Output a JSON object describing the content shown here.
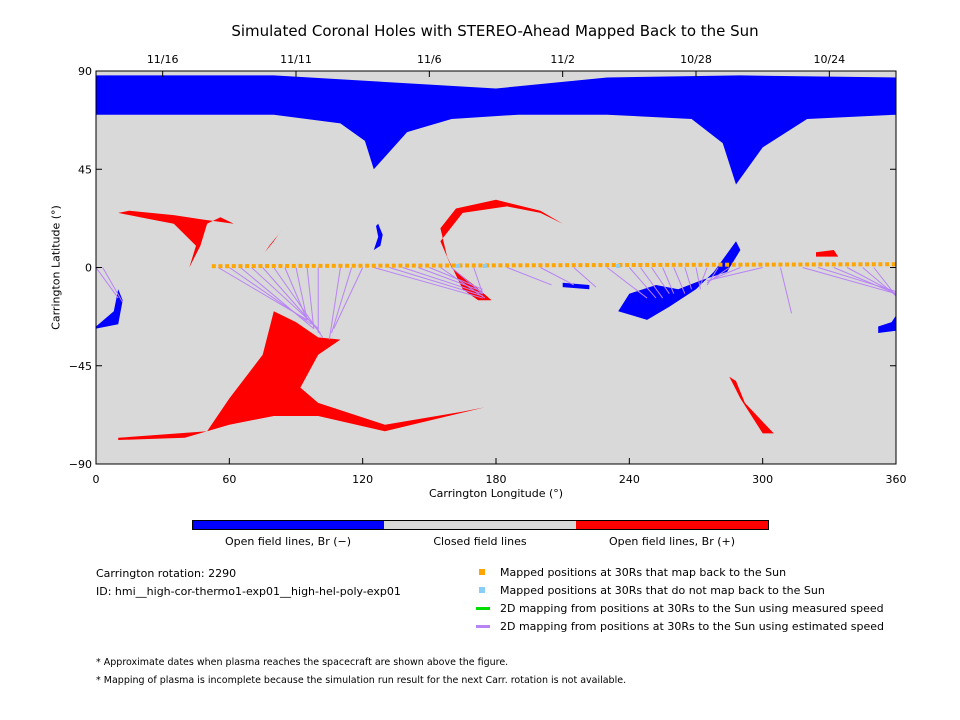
{
  "chart_data": {
    "type": "map",
    "title": "Simulated Coronal Holes with STEREO-Ahead Mapped Back to the Sun",
    "xlabel": "Carrington Longitude (°)",
    "ylabel": "Carrington Latitude (°)",
    "xlim": [
      0,
      360
    ],
    "ylim": [
      -90,
      90
    ],
    "x_ticks": [
      0,
      60,
      120,
      180,
      240,
      300,
      360
    ],
    "y_ticks": [
      {
        "value": 90,
        "label": "90"
      },
      {
        "value": 45,
        "label": "45"
      },
      {
        "value": 0,
        "label": "0"
      },
      {
        "value": -45,
        "label": "−45"
      },
      {
        "value": -90,
        "label": "−90"
      }
    ],
    "top_axis_dates": [
      {
        "label": "11/16",
        "lon": 30
      },
      {
        "label": "11/11",
        "lon": 90
      },
      {
        "label": "11/6",
        "lon": 150
      },
      {
        "label": "11/2",
        "lon": 210
      },
      {
        "label": "10/28",
        "lon": 270
      },
      {
        "label": "10/24",
        "lon": 330
      }
    ],
    "colors": {
      "negative": "#0000ff",
      "closed": "#d9d9d9",
      "positive": "#ff0000",
      "mapped": "#ffa500",
      "unmapped": "#87cefa",
      "measured": "#00dd00",
      "estimated": "#b883f5"
    },
    "regions": [
      {
        "polarity": "negative",
        "points": [
          [
            0,
            88
          ],
          [
            80,
            88
          ],
          [
            180,
            82
          ],
          [
            230,
            87
          ],
          [
            290,
            88
          ],
          [
            360,
            87
          ],
          [
            360,
            70
          ],
          [
            320,
            68
          ],
          [
            300,
            55
          ],
          [
            288,
            38
          ],
          [
            282,
            57
          ],
          [
            268,
            68
          ],
          [
            230,
            70
          ],
          [
            190,
            70
          ],
          [
            160,
            68
          ],
          [
            140,
            62
          ],
          [
            125,
            45
          ],
          [
            121,
            58
          ],
          [
            110,
            66
          ],
          [
            80,
            70
          ],
          [
            0,
            70
          ]
        ]
      },
      {
        "polarity": "negative",
        "points": [
          [
            127,
            20
          ],
          [
            129,
            15
          ],
          [
            128,
            10
          ],
          [
            125,
            8
          ],
          [
            127,
            14
          ],
          [
            126,
            19
          ]
        ]
      },
      {
        "polarity": "negative",
        "points": [
          [
            235,
            -20
          ],
          [
            248,
            -24
          ],
          [
            258,
            -18
          ],
          [
            270,
            -10
          ],
          [
            278,
            -2
          ],
          [
            288,
            12
          ],
          [
            290,
            8
          ],
          [
            284,
            -2
          ],
          [
            272,
            -6
          ],
          [
            262,
            -10
          ],
          [
            252,
            -8
          ],
          [
            240,
            -12
          ]
        ]
      },
      {
        "polarity": "negative",
        "points": [
          [
            210,
            -7
          ],
          [
            222,
            -8
          ],
          [
            222,
            -10
          ],
          [
            210,
            -9
          ]
        ]
      },
      {
        "polarity": "negative",
        "points": [
          [
            0,
            -27
          ],
          [
            8,
            -20
          ],
          [
            10,
            -10
          ],
          [
            12,
            -15
          ],
          [
            10,
            -26
          ],
          [
            0,
            -28
          ]
        ]
      },
      {
        "polarity": "negative",
        "points": [
          [
            352,
            -27
          ],
          [
            358,
            -25
          ],
          [
            360,
            -22
          ],
          [
            360,
            -29
          ],
          [
            352,
            -30
          ]
        ]
      },
      {
        "polarity": "positive",
        "points": [
          [
            10,
            -78
          ],
          [
            50,
            -75
          ],
          [
            60,
            -60
          ],
          [
            75,
            -40
          ],
          [
            80,
            -20
          ],
          [
            90,
            -25
          ],
          [
            100,
            -32
          ],
          [
            110,
            -33
          ],
          [
            100,
            -40
          ],
          [
            92,
            -55
          ],
          [
            100,
            -62
          ],
          [
            130,
            -72
          ],
          [
            165,
            -66
          ],
          [
            175,
            -64
          ],
          [
            130,
            -75
          ],
          [
            100,
            -68
          ],
          [
            80,
            -68
          ],
          [
            60,
            -72
          ],
          [
            40,
            -78
          ],
          [
            10,
            -79
          ]
        ]
      },
      {
        "polarity": "positive",
        "points": [
          [
            10,
            25
          ],
          [
            25,
            22
          ],
          [
            35,
            20
          ],
          [
            45,
            10
          ],
          [
            42,
            0
          ],
          [
            47,
            10
          ],
          [
            50,
            20
          ],
          [
            56,
            23
          ],
          [
            62,
            20
          ],
          [
            48,
            22
          ],
          [
            35,
            24
          ],
          [
            15,
            26
          ]
        ]
      },
      {
        "polarity": "positive",
        "points": [
          [
            78,
            10
          ],
          [
            82,
            15
          ],
          [
            84,
            18
          ],
          [
            80,
            12
          ],
          [
            76,
            7
          ]
        ]
      },
      {
        "polarity": "positive",
        "points": [
          [
            155,
            12
          ],
          [
            165,
            25
          ],
          [
            185,
            28
          ],
          [
            200,
            25
          ],
          [
            210,
            20
          ],
          [
            200,
            26
          ],
          [
            180,
            31
          ],
          [
            162,
            27
          ],
          [
            155,
            18
          ],
          [
            158,
            5
          ],
          [
            165,
            -10
          ],
          [
            172,
            -15
          ],
          [
            178,
            -15
          ],
          [
            170,
            -8
          ],
          [
            160,
            0
          ]
        ]
      },
      {
        "polarity": "positive",
        "points": [
          [
            324,
            7
          ],
          [
            332,
            8
          ],
          [
            334,
            5
          ],
          [
            324,
            5
          ]
        ]
      },
      {
        "polarity": "positive",
        "points": [
          [
            285,
            -50
          ],
          [
            290,
            -60
          ],
          [
            300,
            -76
          ],
          [
            305,
            -76
          ],
          [
            292,
            -62
          ],
          [
            288,
            -52
          ]
        ]
      }
    ],
    "estimated_speed_mappings": [
      {
        "from": [
          55,
          0
        ],
        "to": [
          95,
          -24
        ]
      },
      {
        "from": [
          60,
          0
        ],
        "to": [
          97,
          -26
        ]
      },
      {
        "from": [
          65,
          0
        ],
        "to": [
          98,
          -28
        ]
      },
      {
        "from": [
          70,
          0
        ],
        "to": [
          100,
          -28
        ]
      },
      {
        "from": [
          75,
          0
        ],
        "to": [
          101,
          -30
        ]
      },
      {
        "from": [
          80,
          0
        ],
        "to": [
          102,
          -32
        ]
      },
      {
        "from": [
          85,
          0
        ],
        "to": [
          95,
          -24
        ]
      },
      {
        "from": [
          90,
          0
        ],
        "to": [
          95,
          -24
        ]
      },
      {
        "from": [
          95,
          0
        ],
        "to": [
          98,
          -28
        ]
      },
      {
        "from": [
          100,
          0
        ],
        "to": [
          100,
          -30
        ]
      },
      {
        "from": [
          110,
          0
        ],
        "to": [
          105,
          -33
        ]
      },
      {
        "from": [
          115,
          0
        ],
        "to": [
          106,
          -30
        ]
      },
      {
        "from": [
          120,
          0
        ],
        "to": [
          107,
          -28
        ]
      },
      {
        "from": [
          125,
          0
        ],
        "to": [
          174,
          -14
        ]
      },
      {
        "from": [
          132,
          0
        ],
        "to": [
          174,
          -13
        ]
      },
      {
        "from": [
          138,
          0
        ],
        "to": [
          174,
          -12
        ]
      },
      {
        "from": [
          145,
          0
        ],
        "to": [
          174,
          -11
        ]
      },
      {
        "from": [
          150,
          0
        ],
        "to": [
          174,
          -10
        ]
      },
      {
        "from": [
          155,
          0
        ],
        "to": [
          175,
          -14
        ]
      },
      {
        "from": [
          160,
          0
        ],
        "to": [
          174,
          -12
        ]
      },
      {
        "from": [
          170,
          0
        ],
        "to": [
          174,
          -12
        ]
      },
      {
        "from": [
          185,
          0
        ],
        "to": [
          205,
          -8
        ]
      },
      {
        "from": [
          200,
          0
        ],
        "to": [
          215,
          -8
        ]
      },
      {
        "from": [
          215,
          0
        ],
        "to": [
          225,
          -9
        ]
      },
      {
        "from": [
          230,
          0
        ],
        "to": [
          248,
          -14
        ]
      },
      {
        "from": [
          240,
          0
        ],
        "to": [
          252,
          -14
        ]
      },
      {
        "from": [
          245,
          0
        ],
        "to": [
          255,
          -14
        ]
      },
      {
        "from": [
          250,
          0
        ],
        "to": [
          258,
          -12
        ]
      },
      {
        "from": [
          255,
          0
        ],
        "to": [
          260,
          -12
        ]
      },
      {
        "from": [
          260,
          0
        ],
        "to": [
          265,
          -12
        ]
      },
      {
        "from": [
          265,
          0
        ],
        "to": [
          268,
          -10
        ]
      },
      {
        "from": [
          270,
          0
        ],
        "to": [
          272,
          -10
        ]
      },
      {
        "from": [
          275,
          0
        ],
        "to": [
          272,
          -8
        ]
      },
      {
        "from": [
          280,
          0
        ],
        "to": [
          275,
          -8
        ]
      },
      {
        "from": [
          285,
          0
        ],
        "to": [
          275,
          -7
        ]
      },
      {
        "from": [
          290,
          0
        ],
        "to": [
          278,
          -5
        ]
      },
      {
        "from": [
          300,
          0
        ],
        "to": [
          275,
          -6
        ]
      },
      {
        "from": [
          308,
          0
        ],
        "to": [
          313,
          -21
        ]
      },
      {
        "from": [
          318,
          0
        ],
        "to": [
          360,
          -12
        ]
      },
      {
        "from": [
          325,
          0
        ],
        "to": [
          360,
          -11
        ]
      },
      {
        "from": [
          332,
          0
        ],
        "to": [
          360,
          -12
        ]
      },
      {
        "from": [
          338,
          0
        ],
        "to": [
          360,
          -12
        ]
      },
      {
        "from": [
          345,
          0
        ],
        "to": [
          360,
          -13
        ]
      },
      {
        "from": [
          350,
          0
        ],
        "to": [
          360,
          -13
        ]
      },
      {
        "from": [
          0,
          0
        ],
        "to": [
          10,
          -14
        ]
      },
      {
        "from": [
          3,
          0
        ],
        "to": [
          12,
          -16
        ]
      }
    ],
    "mapped_points_lon_range": [
      53,
      360
    ],
    "mapped_points_step": 3,
    "unmapped_points": [
      [
        163,
        0
      ],
      [
        175,
        0
      ],
      [
        235,
        0
      ]
    ],
    "colorbar": {
      "segments": [
        "negative",
        "closed",
        "positive"
      ],
      "labels": [
        "Open field lines, Br (−)",
        "Closed field lines",
        "Open field lines, Br (+)"
      ]
    }
  },
  "info": {
    "rotation": "Carrington rotation: 2290",
    "id": "ID: hmi__high-cor-thermo1-exp01__high-hel-poly-exp01"
  },
  "legend": [
    {
      "key": "mapped",
      "type": "square",
      "label": "Mapped positions at 30Rs that map back to the Sun"
    },
    {
      "key": "unmapped",
      "type": "square",
      "label": "Mapped positions at 30Rs that do not map back to the Sun"
    },
    {
      "key": "measured",
      "type": "line",
      "label": "2D mapping from positions at 30Rs to the Sun using measured speed"
    },
    {
      "key": "estimated",
      "type": "line",
      "label": "2D mapping from positions at 30Rs to the Sun using estimated speed"
    }
  ],
  "notes": [
    "* Approximate dates when plasma reaches the spacecraft are shown above the figure.",
    "* Mapping of plasma is incomplete because the simulation run result for the next Carr. rotation is not available."
  ]
}
